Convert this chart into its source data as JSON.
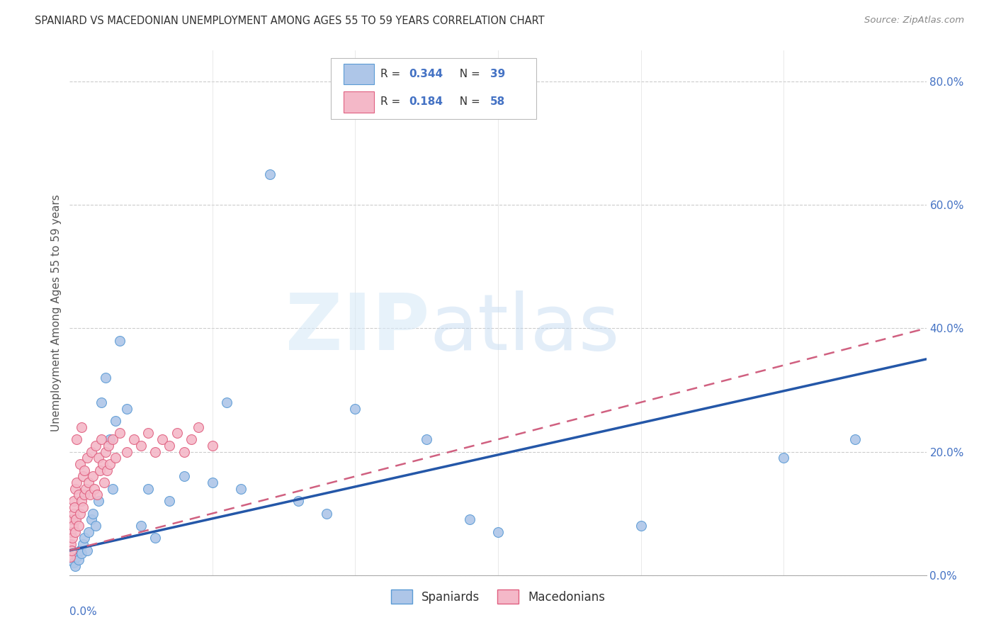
{
  "title": "SPANIARD VS MACEDONIAN UNEMPLOYMENT AMONG AGES 55 TO 59 YEARS CORRELATION CHART",
  "source": "Source: ZipAtlas.com",
  "ylabel": "Unemployment Among Ages 55 to 59 years",
  "xmin": 0.0,
  "xmax": 0.6,
  "ymin": 0.0,
  "ymax": 0.85,
  "spaniard_color": "#aec6e8",
  "spaniard_edge": "#5b9bd5",
  "macedonian_color": "#f4b8c8",
  "macedonian_edge": "#e06080",
  "spaniard_R": 0.344,
  "spaniard_N": 39,
  "macedonian_R": 0.184,
  "macedonian_N": 58,
  "legend_blue_label": "Spaniards",
  "legend_pink_label": "Macedonians",
  "background_color": "#ffffff",
  "grid_color": "#cccccc",
  "spaniard_line_color": "#2457a8",
  "macedonian_line_color": "#d06080",
  "spaniard_x": [
    0.003,
    0.004,
    0.005,
    0.006,
    0.007,
    0.008,
    0.009,
    0.01,
    0.012,
    0.013,
    0.015,
    0.016,
    0.018,
    0.02,
    0.022,
    0.025,
    0.028,
    0.03,
    0.032,
    0.035,
    0.04,
    0.05,
    0.055,
    0.06,
    0.07,
    0.08,
    0.1,
    0.11,
    0.12,
    0.14,
    0.16,
    0.18,
    0.2,
    0.25,
    0.28,
    0.3,
    0.4,
    0.5,
    0.55
  ],
  "spaniard_y": [
    0.02,
    0.015,
    0.03,
    0.025,
    0.04,
    0.035,
    0.05,
    0.06,
    0.04,
    0.07,
    0.09,
    0.1,
    0.08,
    0.12,
    0.28,
    0.32,
    0.22,
    0.14,
    0.25,
    0.38,
    0.27,
    0.08,
    0.14,
    0.06,
    0.12,
    0.16,
    0.15,
    0.28,
    0.14,
    0.65,
    0.12,
    0.1,
    0.27,
    0.22,
    0.09,
    0.07,
    0.08,
    0.19,
    0.22
  ],
  "macedonian_x": [
    0.0005,
    0.001,
    0.001,
    0.0015,
    0.002,
    0.002,
    0.0025,
    0.003,
    0.003,
    0.0035,
    0.004,
    0.004,
    0.0045,
    0.005,
    0.005,
    0.006,
    0.006,
    0.007,
    0.007,
    0.008,
    0.008,
    0.009,
    0.009,
    0.01,
    0.01,
    0.011,
    0.012,
    0.013,
    0.014,
    0.015,
    0.016,
    0.017,
    0.018,
    0.019,
    0.02,
    0.021,
    0.022,
    0.023,
    0.024,
    0.025,
    0.026,
    0.027,
    0.028,
    0.03,
    0.032,
    0.035,
    0.04,
    0.045,
    0.05,
    0.055,
    0.06,
    0.065,
    0.07,
    0.075,
    0.08,
    0.085,
    0.09,
    0.1
  ],
  "macedonian_y": [
    0.03,
    0.05,
    0.07,
    0.04,
    0.06,
    0.09,
    0.08,
    0.1,
    0.12,
    0.11,
    0.07,
    0.14,
    0.09,
    0.15,
    0.22,
    0.08,
    0.13,
    0.1,
    0.18,
    0.12,
    0.24,
    0.11,
    0.16,
    0.13,
    0.17,
    0.14,
    0.19,
    0.15,
    0.13,
    0.2,
    0.16,
    0.14,
    0.21,
    0.13,
    0.19,
    0.17,
    0.22,
    0.18,
    0.15,
    0.2,
    0.17,
    0.21,
    0.18,
    0.22,
    0.19,
    0.23,
    0.2,
    0.22,
    0.21,
    0.23,
    0.2,
    0.22,
    0.21,
    0.23,
    0.2,
    0.22,
    0.24,
    0.21
  ],
  "spaniard_line": [
    0.0,
    0.6,
    0.04,
    0.36
  ],
  "macedonian_line": [
    0.0,
    0.6,
    0.04,
    0.42
  ],
  "right_yticks": [
    0.0,
    0.2,
    0.4,
    0.6,
    0.8
  ],
  "right_ylabels": [
    "0.0%",
    "20.0%",
    "40.0%",
    "60.0%",
    "80.0%"
  ]
}
